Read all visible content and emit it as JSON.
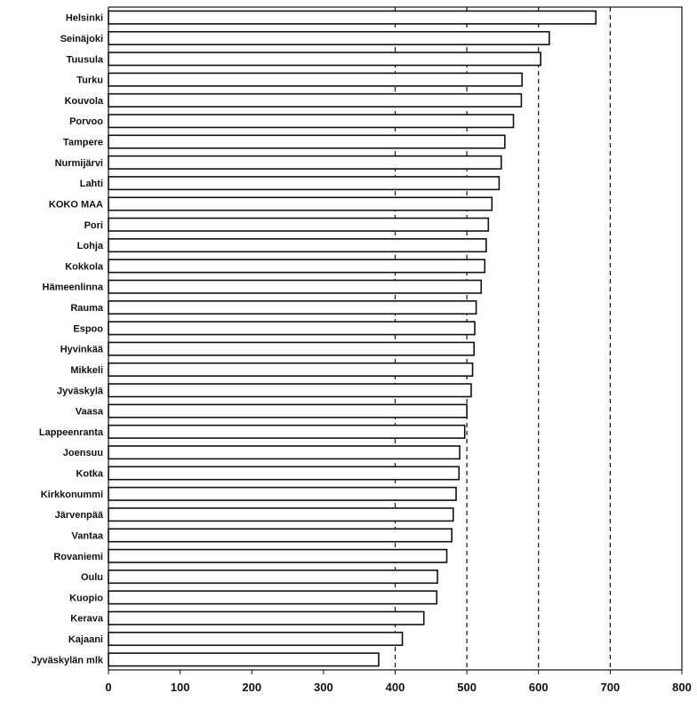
{
  "chart_data": {
    "type": "bar",
    "orientation": "horizontal",
    "categories": [
      "Helsinki",
      "Seinäjoki",
      "Tuusula",
      "Turku",
      "Kouvola",
      "Porvoo",
      "Tampere",
      "Nurmijärvi",
      "Lahti",
      "KOKO MAA",
      "Pori",
      "Lohja",
      "Kokkola",
      "Hämeenlinna",
      "Rauma",
      "Espoo",
      "Hyvinkää",
      "Mikkeli",
      "Jyväskylä",
      "Vaasa",
      "Lappeenranta",
      "Joensuu",
      "Kotka",
      "Kirkkonummi",
      "Järvenpää",
      "Vantaa",
      "Rovaniemi",
      "Oulu",
      "Kuopio",
      "Kerava",
      "Kajaani",
      "Jyväskylän mlk"
    ],
    "values": [
      680,
      615,
      603,
      577,
      576,
      565,
      553,
      548,
      545,
      535,
      530,
      527,
      525,
      520,
      513,
      511,
      510,
      508,
      506,
      500,
      497,
      490,
      489,
      485,
      481,
      479,
      472,
      459,
      458,
      440,
      410,
      377
    ],
    "xlim": [
      0,
      800
    ],
    "xticks": [
      0,
      100,
      200,
      300,
      400,
      500,
      600,
      700,
      800
    ],
    "reference_lines": [
      400,
      500,
      600,
      700
    ],
    "grid": false,
    "bar_color": "#ffffff",
    "bar_edge_color": "#111111"
  }
}
